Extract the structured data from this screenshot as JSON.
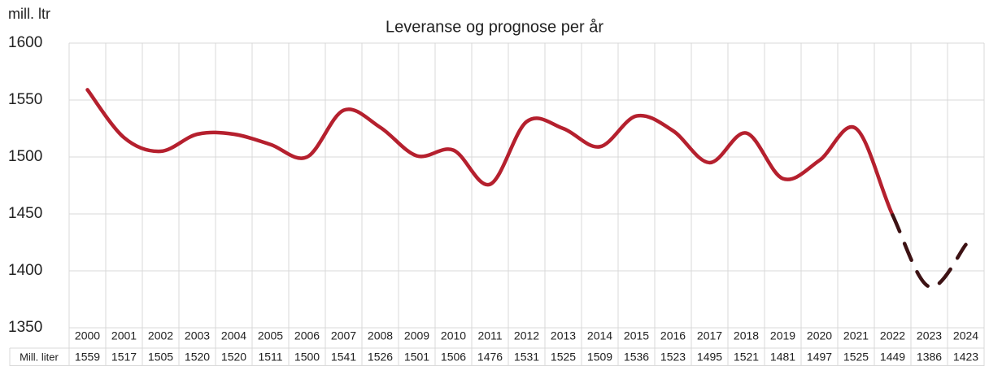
{
  "chart_data": {
    "type": "line",
    "title": "Leveranse og prognose per år",
    "y_label": "mill. ltr",
    "categories": [
      "2000",
      "2001",
      "2002",
      "2003",
      "2004",
      "2005",
      "2006",
      "2007",
      "2008",
      "2009",
      "2010",
      "2011",
      "2012",
      "2013",
      "2014",
      "2015",
      "2016",
      "2017",
      "2018",
      "2019",
      "2020",
      "2021",
      "2022",
      "2023",
      "2024"
    ],
    "series": [
      {
        "name": "Mill. liter",
        "color": "#b5202e",
        "forecast_color": "#3d1214",
        "forecast_from": 22,
        "values": [
          1559,
          1517,
          1505,
          1520,
          1520,
          1511,
          1500,
          1541,
          1526,
          1501,
          1506,
          1476,
          1531,
          1525,
          1509,
          1536,
          1523,
          1495,
          1521,
          1481,
          1497,
          1525,
          1449,
          1386,
          1423
        ]
      }
    ],
    "ylim": [
      1350,
      1600
    ],
    "yticks": [
      1350,
      1400,
      1450,
      1500,
      1550,
      1600
    ],
    "grid": true,
    "data_table": true
  }
}
